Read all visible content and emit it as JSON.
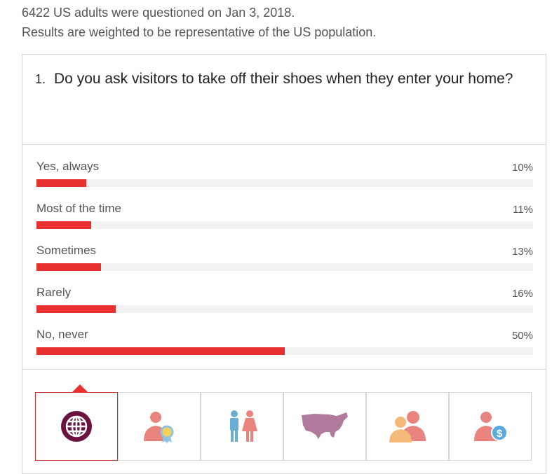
{
  "intro": {
    "line1": "6422 US adults were questioned on Jan 3, 2018.",
    "line2": "Results are weighted to be representative of the US population."
  },
  "question": {
    "number": "1.",
    "text": "Do you ask visitors to take off their shoes when they enter your home?"
  },
  "answers": [
    {
      "label": "Yes, always",
      "percent_text": "10%",
      "value": 10
    },
    {
      "label": "Most of the time",
      "percent_text": "11%",
      "value": 11
    },
    {
      "label": "Sometimes",
      "percent_text": "13%",
      "value": 13
    },
    {
      "label": "Rarely",
      "percent_text": "16%",
      "value": 16
    },
    {
      "label": "No, never",
      "percent_text": "50%",
      "value": 50
    }
  ],
  "colors": {
    "bar": "#e8302f",
    "track": "#f2f2f2",
    "globe": "#6b1240",
    "person_salmon": "#e8837d",
    "person_blue": "#6aaed6",
    "map_mauve": "#b07a9c",
    "person_orange": "#f5b97a",
    "dollar_blue": "#5aa9e0"
  },
  "tabs": [
    {
      "icon": "globe-icon",
      "active": true
    },
    {
      "icon": "person-award-icon",
      "active": false
    },
    {
      "icon": "man-woman-icon",
      "active": false
    },
    {
      "icon": "us-map-icon",
      "active": false
    },
    {
      "icon": "two-people-icon",
      "active": false
    },
    {
      "icon": "person-dollar-icon",
      "active": false
    }
  ]
}
